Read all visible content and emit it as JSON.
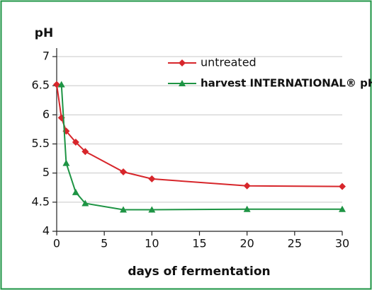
{
  "chart_data": {
    "type": "line",
    "title": "pH",
    "x_label": "days of fermentation",
    "xlim": [
      0,
      30
    ],
    "xticks": [
      0,
      5,
      10,
      15,
      20,
      25,
      30
    ],
    "ylim": [
      4,
      7
    ],
    "yticks": [
      4,
      4.5,
      5,
      5.5,
      6,
      6.5,
      7
    ],
    "grid": true,
    "legend": "top-right",
    "series": [
      {
        "name": "untreated",
        "color": "#d7262b",
        "marker": "diamond",
        "x": [
          0,
          0.5,
          1,
          2,
          3,
          7,
          10,
          20,
          30
        ],
        "values": [
          6.52,
          5.95,
          5.72,
          5.53,
          5.37,
          5.02,
          4.9,
          4.78,
          4.77
        ]
      },
      {
        "name": "harvest INTERNATIONAL® pH",
        "color": "#1e9444",
        "marker": "triangle",
        "x": [
          0.5,
          1,
          2,
          3,
          7,
          10,
          20,
          30
        ],
        "values": [
          6.52,
          5.17,
          4.67,
          4.48,
          4.37,
          4.37,
          4.38,
          4.38
        ]
      }
    ]
  }
}
